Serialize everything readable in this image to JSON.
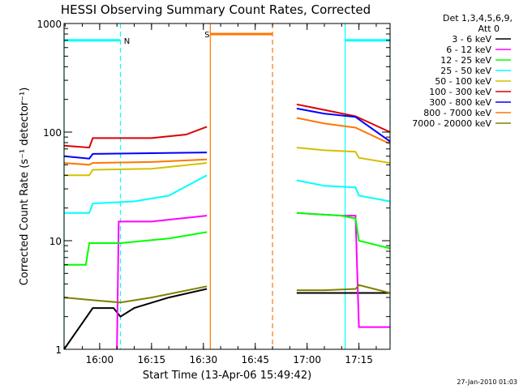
{
  "chart_data": {
    "type": "line",
    "title": "HESSI Observing Summary Count Rates, Corrected",
    "xlabel": "Start Time (13-Apr-06 15:49:42)",
    "ylabel": "Corrected Count Rate (s⁻¹ detector⁻¹)",
    "x_scale": "time",
    "xlim": [
      "15:49:42",
      "17:24:00"
    ],
    "x_ticks": [
      "16:00",
      "16:15",
      "16:30",
      "16:45",
      "17:00",
      "17:15"
    ],
    "y_scale": "log",
    "ylim": [
      1,
      1000
    ],
    "y_ticks": [
      "1",
      "10",
      "100",
      "1000"
    ],
    "legend_header": [
      "Det 1,3,4,5,6,9,",
      "Att 0"
    ],
    "legend_position": "right",
    "footer_date": "27-Jan-2010 01:03",
    "flag_bars": [
      {
        "label": "",
        "color": "#00ffff",
        "x0": "15:49:42",
        "x1": "16:06:00",
        "y": 700
      },
      {
        "label": "N",
        "color": "#00ffff",
        "x0": "16:06:00",
        "x1": "16:06:00",
        "y": 700
      },
      {
        "label": "S",
        "color": "#ff7700",
        "x0": "16:32:00",
        "x1": "16:50:00",
        "y": 800
      },
      {
        "label": "",
        "color": "#00ffff",
        "x0": "17:11:00",
        "x1": "17:24:00",
        "y": 700
      }
    ],
    "vertical_lines": [
      {
        "x": "15:49:42",
        "color": "#00ffff",
        "style": "solid"
      },
      {
        "x": "16:06:00",
        "color": "#00ffff",
        "style": "dashed"
      },
      {
        "x": "16:32:00",
        "color": "#ff7700",
        "style": "solid"
      },
      {
        "x": "16:50:00",
        "color": "#ff7700",
        "style": "dashed"
      },
      {
        "x": "17:11:00",
        "color": "#00ffff",
        "style": "solid"
      },
      {
        "x": "17:24:00",
        "color": "#00ffff",
        "style": "dashed"
      }
    ],
    "series": [
      {
        "name": "3 - 6 keV",
        "color": "#000000",
        "segments": [
          {
            "x": [
              "15:49:42",
              "15:58:00",
              "16:04:00",
              "16:06:00",
              "16:10:00",
              "16:20:00",
              "16:31:00"
            ],
            "y": [
              1,
              2.4,
              2.4,
              2.0,
              2.4,
              3.0,
              3.6
            ]
          },
          {
            "x": [
              "16:57:00",
              "17:05:00",
              "17:14:00",
              "17:24:00"
            ],
            "y": [
              3.3,
              3.3,
              3.3,
              3.3
            ]
          }
        ]
      },
      {
        "name": "6 - 12 keV",
        "color": "#ff00ff",
        "segments": [
          {
            "x": [
              "16:05:00",
              "16:05:30",
              "16:15:00",
              "16:31:00"
            ],
            "y": [
              1.0,
              15,
              15,
              17
            ]
          },
          {
            "x": [
              "16:57:00",
              "17:10:00",
              "17:14:00",
              "17:15:00",
              "17:24:00"
            ],
            "y": [
              18,
              17,
              17,
              1.6,
              1.6
            ]
          }
        ]
      },
      {
        "name": "12 - 25 keV",
        "color": "#00ff00",
        "segments": [
          {
            "x": [
              "15:49:42",
              "15:56:00",
              "15:57:00",
              "16:06:00",
              "16:20:00",
              "16:31:00"
            ],
            "y": [
              6,
              6,
              9.5,
              9.5,
              10.5,
              12
            ]
          },
          {
            "x": [
              "16:57:00",
              "17:10:00",
              "17:14:00",
              "17:15:00",
              "17:24:00"
            ],
            "y": [
              18,
              17,
              16,
              10,
              8.5
            ]
          }
        ]
      },
      {
        "name": "25 - 50 keV",
        "color": "#00ffff",
        "segments": [
          {
            "x": [
              "15:49:42",
              "15:57:00",
              "15:58:00",
              "16:10:00",
              "16:20:00",
              "16:31:00"
            ],
            "y": [
              18,
              18,
              22,
              23,
              26,
              40
            ]
          },
          {
            "x": [
              "16:57:00",
              "17:05:00",
              "17:14:00",
              "17:15:00",
              "17:24:00"
            ],
            "y": [
              36,
              32,
              31,
              26,
              23
            ]
          }
        ]
      },
      {
        "name": "50 - 100 keV",
        "color": "#d4c000",
        "segments": [
          {
            "x": [
              "15:49:42",
              "15:57:00",
              "15:58:00",
              "16:15:00",
              "16:31:00"
            ],
            "y": [
              40,
              40,
              45,
              46,
              52
            ]
          },
          {
            "x": [
              "16:57:00",
              "17:05:00",
              "17:14:00",
              "17:15:00",
              "17:24:00"
            ],
            "y": [
              72,
              68,
              66,
              58,
              52
            ]
          }
        ]
      },
      {
        "name": "100 - 300 keV",
        "color": "#dd0000",
        "segments": [
          {
            "x": [
              "15:49:42",
              "15:57:00",
              "15:58:00",
              "16:15:00",
              "16:25:00",
              "16:31:00"
            ],
            "y": [
              75,
              72,
              88,
              88,
              95,
              112
            ]
          },
          {
            "x": [
              "16:57:00",
              "17:05:00",
              "17:14:00",
              "17:24:00"
            ],
            "y": [
              180,
              160,
              140,
              100
            ]
          }
        ]
      },
      {
        "name": "300 - 800 keV",
        "color": "#0000ff",
        "segments": [
          {
            "x": [
              "15:49:42",
              "15:57:00",
              "15:58:00",
              "16:15:00",
              "16:31:00"
            ],
            "y": [
              60,
              57,
              63,
              64,
              65
            ]
          },
          {
            "x": [
              "16:57:00",
              "17:05:00",
              "17:14:00",
              "17:24:00"
            ],
            "y": [
              165,
              148,
              138,
              82
            ]
          }
        ]
      },
      {
        "name": "800 - 7000 keV",
        "color": "#ff7700",
        "segments": [
          {
            "x": [
              "15:49:42",
              "15:57:00",
              "15:58:00",
              "16:15:00",
              "16:31:00"
            ],
            "y": [
              52,
              50,
              52,
              53,
              56
            ]
          },
          {
            "x": [
              "16:57:00",
              "17:05:00",
              "17:14:00",
              "17:24:00"
            ],
            "y": [
              135,
              120,
              110,
              78
            ]
          }
        ]
      },
      {
        "name": "7000 - 20000 keV",
        "color": "#808000",
        "segments": [
          {
            "x": [
              "15:49:42",
              "16:00:00",
              "16:06:00",
              "16:15:00",
              "16:31:00"
            ],
            "y": [
              3.0,
              2.8,
              2.7,
              3.0,
              3.8
            ]
          },
          {
            "x": [
              "16:57:00",
              "17:05:00",
              "17:14:00",
              "17:15:00",
              "17:24:00"
            ],
            "y": [
              3.5,
              3.5,
              3.6,
              3.9,
              3.3
            ]
          }
        ]
      }
    ]
  }
}
